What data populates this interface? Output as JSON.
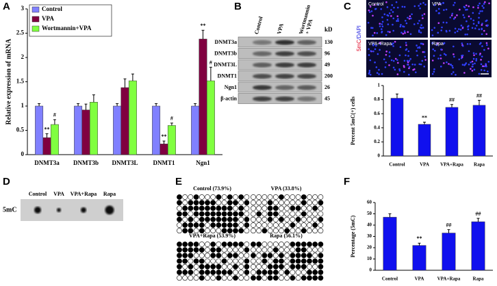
{
  "chart_data": [
    {
      "type": "bar",
      "y_label": "Relative expression of mRNA",
      "categories": [
        "DNMT3a",
        "DNMT3b",
        "DNMT3L",
        "DNMT1",
        "Ngn1"
      ],
      "series": [
        {
          "name": "Control",
          "color": "#8080ff",
          "values": [
            1.0,
            1.0,
            1.0,
            1.0,
            1.0
          ],
          "errors": [
            0.05,
            0.05,
            0.05,
            0.05,
            0.05
          ],
          "markers": [
            null,
            null,
            null,
            null,
            null
          ]
        },
        {
          "name": "VPA",
          "color": "#800040",
          "values": [
            0.35,
            0.92,
            1.38,
            0.22,
            2.38
          ],
          "errors": [
            0.08,
            0.12,
            0.18,
            0.06,
            0.18
          ],
          "markers": [
            "**",
            null,
            null,
            "**",
            "**"
          ]
        },
        {
          "name": "Wortmannin+VPA",
          "color": "#80ff40",
          "values": [
            0.62,
            1.08,
            1.52,
            0.6,
            1.52
          ],
          "errors": [
            0.1,
            0.15,
            0.14,
            0.05,
            0.28
          ],
          "markers": [
            "#",
            null,
            null,
            "#",
            "#"
          ]
        }
      ],
      "ylim": [
        0,
        3
      ],
      "yticks": [
        0,
        0.5,
        1,
        1.5,
        2,
        2.5,
        3
      ],
      "legend": "upper left"
    },
    {
      "type": "bar",
      "y_label": "Percent 5mC(+) cells",
      "categories": [
        "Control",
        "VPA",
        "VPA+Rapa",
        "Rapa"
      ],
      "color": "#1010ee",
      "values": [
        0.82,
        0.45,
        0.69,
        0.72
      ],
      "errors": [
        0.06,
        0.03,
        0.04,
        0.07
      ],
      "markers": [
        null,
        "**",
        "##",
        "##"
      ],
      "ylim": [
        0,
        1
      ],
      "yticks": [
        0,
        0.2,
        0.4,
        0.6,
        0.8,
        1
      ]
    },
    {
      "type": "bar",
      "y_label": "Percentage (5mC)",
      "categories": [
        "Control",
        "VPA",
        "VPA+Rapa",
        "Rapa"
      ],
      "color": "#1010ee",
      "values": [
        47,
        22,
        33,
        43
      ],
      "errors": [
        3,
        2,
        3,
        3
      ],
      "markers": [
        null,
        "**",
        "##",
        "##"
      ],
      "ylim": [
        0,
        60
      ],
      "yticks": [
        0,
        10,
        20,
        30,
        40,
        50,
        60
      ]
    }
  ],
  "panel_labels": [
    "A",
    "B",
    "C",
    "D",
    "E",
    "F"
  ],
  "blot_b": {
    "columns": [
      "Control",
      "VPA",
      [
        "Wortmannin",
        "+ VPA"
      ]
    ],
    "unit": "kD",
    "rows": [
      [
        "DNMT3a",
        "130"
      ],
      [
        "DNMT3b",
        "96"
      ],
      [
        "DNMT3L",
        "49"
      ],
      [
        "DNMT1",
        "200"
      ],
      [
        "Ngn1",
        "26"
      ],
      [
        "β-actin",
        "45"
      ]
    ]
  },
  "images_c": {
    "labels": [
      "Control",
      "VPA",
      "VPA+Rapa",
      "Rapa"
    ],
    "stain": [
      "5mC",
      "/DAPI"
    ]
  },
  "dot_blot_d": {
    "columns": [
      "Control",
      "VPA",
      "VPA+Rapa",
      "Rapa"
    ],
    "row": "5mC"
  },
  "methylation_e": {
    "titles": [
      "Control (73.9%)",
      "VPA (33.8%)",
      "VPA+Rapa (53.9%)",
      "Rapa (56.1%)"
    ]
  }
}
